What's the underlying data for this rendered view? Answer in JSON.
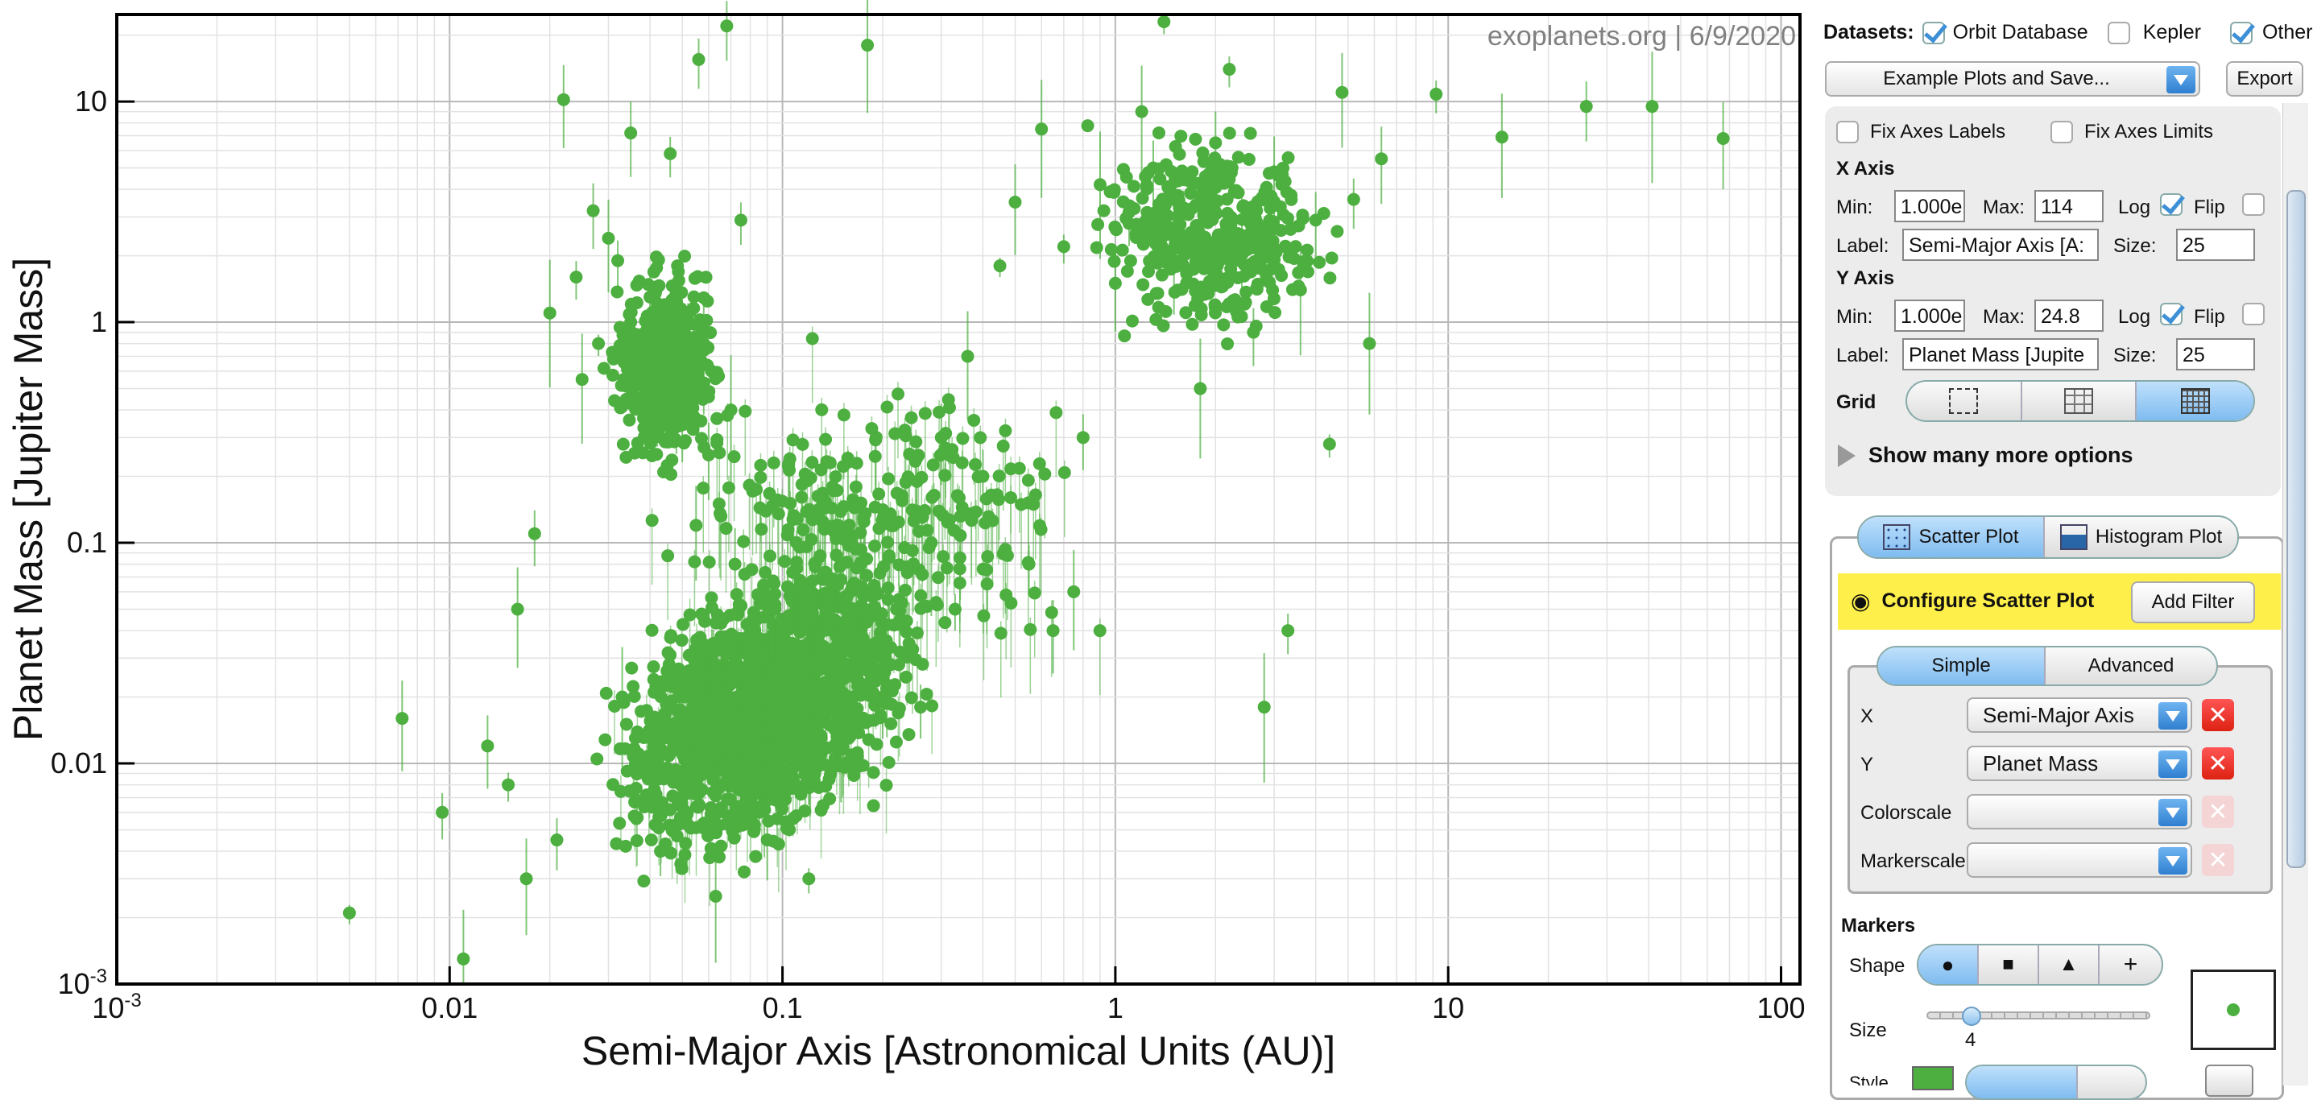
{
  "plot": {
    "watermark": "exoplanets.org | 6/9/2020",
    "xlabel": "Semi-Major Axis [Astronomical Units (AU)]",
    "ylabel": "Planet Mass [Jupiter Mass]",
    "marker_color": "#4caf3f"
  },
  "chart_data": {
    "type": "scatter",
    "title": "",
    "xlabel": "Semi-Major Axis [Astronomical Units (AU)]",
    "ylabel": "Planet Mass [Jupiter Mass]",
    "xscale": "log",
    "yscale": "log",
    "xlim": [
      0.001,
      114
    ],
    "ylim": [
      0.001,
      24.8
    ],
    "xticks": [
      "10-3",
      "0.01",
      "0.1",
      "1",
      "10",
      "100"
    ],
    "yticks": [
      "10-3",
      "0.01",
      "0.1",
      "1",
      "10"
    ],
    "grid": "major and minor",
    "series": [
      {
        "points": [
          [
            0.005,
            0.0021
          ],
          [
            0.0072,
            0.016
          ],
          [
            0.0095,
            0.006
          ],
          [
            0.011,
            0.0013
          ],
          [
            0.013,
            0.012
          ],
          [
            0.015,
            0.008
          ],
          [
            0.016,
            0.05
          ],
          [
            0.018,
            0.11
          ],
          [
            0.02,
            1.1
          ],
          [
            0.022,
            10.2
          ],
          [
            0.024,
            1.6
          ],
          [
            0.025,
            0.55
          ],
          [
            0.027,
            3.2
          ],
          [
            0.028,
            0.8
          ],
          [
            0.03,
            2.4
          ],
          [
            0.032,
            1.9
          ],
          [
            0.033,
            0.02
          ],
          [
            0.035,
            7.2
          ],
          [
            0.036,
            0.7
          ],
          [
            0.038,
            0.45
          ],
          [
            0.04,
            1.3
          ],
          [
            0.042,
            0.6
          ],
          [
            0.045,
            0.9
          ],
          [
            0.046,
            5.8
          ],
          [
            0.048,
            0.5
          ],
          [
            0.05,
            0.35
          ],
          [
            0.052,
            1.1
          ],
          [
            0.055,
            0.12
          ],
          [
            0.056,
            15.5
          ],
          [
            0.058,
            0.8
          ],
          [
            0.06,
            0.25
          ],
          [
            0.062,
            0.035
          ],
          [
            0.065,
            0.015
          ],
          [
            0.068,
            22
          ],
          [
            0.07,
            0.4
          ],
          [
            0.072,
            0.08
          ],
          [
            0.075,
            2.9
          ],
          [
            0.078,
            0.02
          ],
          [
            0.08,
            0.01
          ],
          [
            0.085,
            0.006
          ],
          [
            0.09,
            0.03
          ],
          [
            0.095,
            0.05
          ],
          [
            0.1,
            0.02
          ],
          [
            0.11,
            0.012
          ],
          [
            0.12,
            0.008
          ],
          [
            0.13,
            0.04
          ],
          [
            0.14,
            0.025
          ],
          [
            0.15,
            0.015
          ],
          [
            0.16,
            0.06
          ],
          [
            0.17,
            0.03
          ],
          [
            0.18,
            18
          ],
          [
            0.2,
            0.02
          ],
          [
            0.22,
            0.05
          ],
          [
            0.24,
            0.035
          ],
          [
            0.26,
            0.018
          ],
          [
            0.28,
            0.1
          ],
          [
            0.3,
            0.3
          ],
          [
            0.33,
            0.05
          ],
          [
            0.36,
            0.7
          ],
          [
            0.4,
            0.2
          ],
          [
            0.45,
            1.8
          ],
          [
            0.5,
            3.5
          ],
          [
            0.55,
            0.08
          ],
          [
            0.6,
            7.5
          ],
          [
            0.65,
            0.04
          ],
          [
            0.7,
            2.2
          ],
          [
            0.75,
            0.06
          ],
          [
            0.8,
            0.3
          ],
          [
            0.9,
            4.2
          ],
          [
            1.0,
            1.5
          ],
          [
            1.1,
            2.8
          ],
          [
            1.2,
            9
          ],
          [
            1.3,
            5
          ],
          [
            1.4,
            23
          ],
          [
            1.5,
            1.9
          ],
          [
            1.6,
            3.2
          ],
          [
            1.8,
            0.5
          ],
          [
            2.0,
            6.5
          ],
          [
            2.2,
            14
          ],
          [
            2.4,
            2.4
          ],
          [
            2.6,
            0.9
          ],
          [
            2.8,
            0.018
          ],
          [
            3.0,
            4.8
          ],
          [
            3.3,
            0.04
          ],
          [
            3.6,
            1.4
          ],
          [
            4.0,
            2.9
          ],
          [
            4.4,
            0.28
          ],
          [
            4.8,
            11
          ],
          [
            5.2,
            3.6
          ],
          [
            5.8,
            0.8
          ],
          [
            6.3,
            5.5
          ],
          [
            9.2,
            10.8
          ],
          [
            14.5,
            6.9
          ],
          [
            26,
            9.5
          ],
          [
            41,
            9.5
          ],
          [
            67,
            6.8
          ],
          [
            0.043,
            0.004
          ],
          [
            0.063,
            0.0025
          ],
          [
            0.09,
            0.0045
          ],
          [
            0.12,
            0.003
          ],
          [
            0.017,
            0.003
          ],
          [
            0.021,
            0.0045
          ]
        ]
      }
    ]
  },
  "panel": {
    "datasets_label": "Datasets",
    "ds1": "Orbit Database",
    "ds2": "Kepler",
    "ds3": "Other",
    "example_plots": "Example Plots and Save...",
    "export": "Export",
    "fix_labels": "Fix Axes Labels",
    "fix_limits": "Fix Axes Limits",
    "x_axis_title": "X Axis",
    "y_axis_title": "Y Axis",
    "min": "Min:",
    "max": "Max:",
    "log": "Log",
    "flip": "Flip",
    "label": "Label:",
    "size": "Size:",
    "x_min": "1.000e",
    "x_max": "114",
    "x_label": "Semi-Major Axis [A:",
    "x_size": "25",
    "y_min": "1.000e",
    "y_max": "24.8",
    "y_label": "Planet Mass [Jupite",
    "y_size": "25",
    "grid": "Grid",
    "show_more": "Show many more options",
    "scatter_tab": "Scatter Plot",
    "histogram_tab": "Histogram Plot",
    "configure": "Configure Scatter Plot",
    "add_filter": "Add Filter",
    "simple_tab": "Simple",
    "advanced_tab": "Advanced",
    "x_row": "X",
    "x_value": "Semi-Major Axis",
    "y_row": "Y",
    "y_value": "Planet Mass",
    "colorscale": "Colorscale",
    "markerscale": "Markerscale",
    "markers": "Markers",
    "shape": "Shape",
    "size_row": "Size",
    "size_value": "4",
    "style_row": "Style"
  }
}
